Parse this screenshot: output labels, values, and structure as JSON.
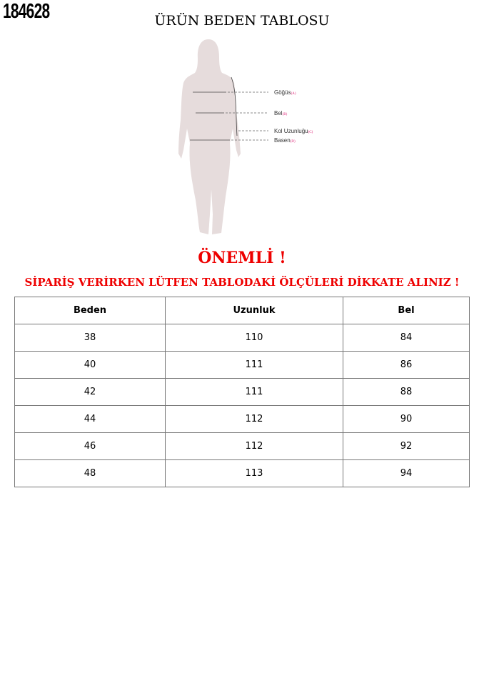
{
  "product_code": "184628",
  "title": "ÜRÜN BEDEN TABLOSU",
  "figure": {
    "labels": [
      {
        "name": "Göğüs",
        "tag": "(A)"
      },
      {
        "name": "Bel",
        "tag": "(B)"
      },
      {
        "name": "Kol Uzunluğu",
        "tag": "(C)"
      },
      {
        "name": "Basen",
        "tag": "(D)"
      }
    ],
    "silhouette_color": "#e6dcdc"
  },
  "important": "ÖNEMLİ !",
  "warning": "SİPARİŞ VERİRKEN LÜTFEN TABLODAKİ ÖLÇÜLERİ DİKKATE ALINIZ !",
  "accent_color": "#ee0000",
  "table": {
    "headers": [
      "Beden",
      "Uzunluk",
      "Bel"
    ],
    "rows": [
      [
        "38",
        "110",
        "84"
      ],
      [
        "40",
        "111",
        "86"
      ],
      [
        "42",
        "111",
        "88"
      ],
      [
        "44",
        "112",
        "90"
      ],
      [
        "46",
        "112",
        "92"
      ],
      [
        "48",
        "113",
        "94"
      ]
    ]
  }
}
